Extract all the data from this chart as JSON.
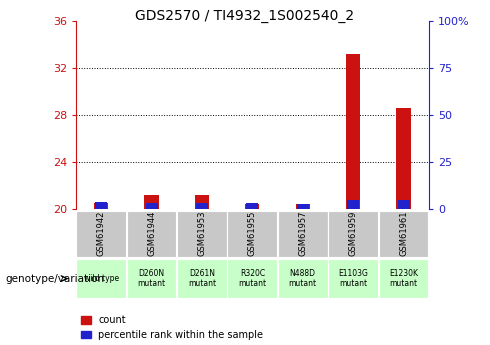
{
  "title": "GDS2570 / TI4932_1S002540_2",
  "samples": [
    "GSM61942",
    "GSM61944",
    "GSM61953",
    "GSM61955",
    "GSM61957",
    "GSM61959",
    "GSM61961"
  ],
  "genotypes": [
    "wild type",
    "D260N\nmutant",
    "D261N\nmutant",
    "R320C\nmutant",
    "N488D\nmutant",
    "E1103G\nmutant",
    "E1230K\nmutant"
  ],
  "count_values": [
    20.5,
    21.2,
    21.2,
    20.4,
    20.4,
    33.2,
    28.6
  ],
  "percentile_values": [
    0.6,
    0.5,
    0.5,
    0.5,
    0.4,
    0.7,
    0.7
  ],
  "bar_bottom": 20,
  "ylim_left": [
    20,
    36
  ],
  "ylim_right": [
    0,
    100
  ],
  "yticks_left": [
    20,
    24,
    28,
    32,
    36
  ],
  "yticks_right": [
    0,
    25,
    50,
    75,
    100
  ],
  "yticklabels_right": [
    "0",
    "25",
    "50",
    "75",
    "100%"
  ],
  "count_color": "#cc1111",
  "percentile_color": "#2222cc",
  "bar_width": 0.28,
  "sample_box_color": "#c8c8c8",
  "genotype_box_color": "#c8ffc8",
  "legend_label_count": "count",
  "legend_label_pct": "percentile rank within the sample",
  "xlabel": "genotype/variation",
  "title_fontsize": 10,
  "tick_fontsize": 8,
  "label_fontsize": 8
}
